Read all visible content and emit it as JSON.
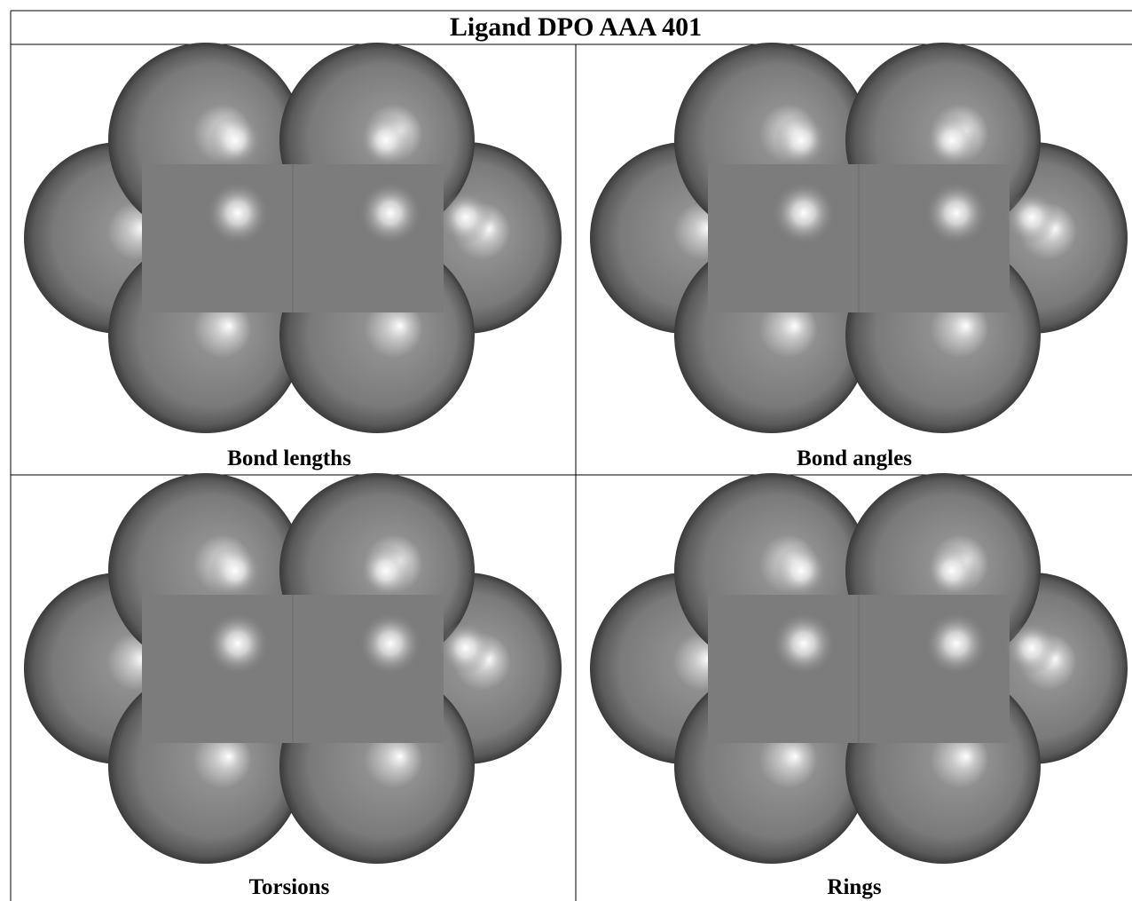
{
  "title": "Ligand DPO AAA 401",
  "panels": [
    {
      "caption": "Bond lengths"
    },
    {
      "caption": "Bond angles"
    },
    {
      "caption": "Torsions"
    },
    {
      "caption": "Rings"
    }
  ]
}
